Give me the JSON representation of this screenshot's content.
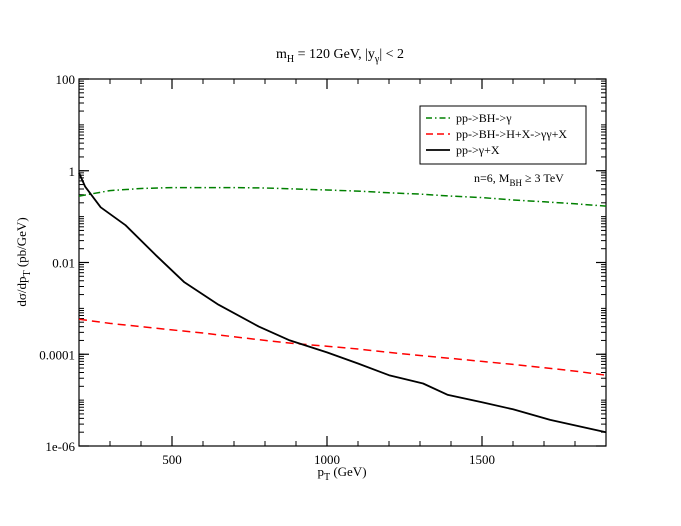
{
  "chart_data": {
    "type": "line",
    "title": "m_H = 120 GeV,  |y_γ| < 2",
    "title_parts": {
      "m": "m",
      "m_sub": "H",
      "mid": " = 120 GeV,  |y",
      "y_sub": "γ",
      "end": "| < 2"
    },
    "xlabel": "p_T (GeV)",
    "xlabel_parts": {
      "p": "p",
      "sub": "T",
      "rest": " (GeV)"
    },
    "ylabel": "dσ/dp_T (pb/GeV)",
    "ylabel_parts": {
      "main": "dσ/dp",
      "sub": "T",
      "rest": " (pb/GeV)"
    },
    "xlim": [
      200,
      1900
    ],
    "ylim_log10": [
      -6,
      2
    ],
    "yscale": "log",
    "x_ticks": [
      {
        "value": 500,
        "label": "500"
      },
      {
        "value": 1000,
        "label": "1000"
      },
      {
        "value": 1500,
        "label": "1500"
      }
    ],
    "y_ticks": [
      {
        "value": 100,
        "label": "100"
      },
      {
        "value": 1,
        "label": "1"
      },
      {
        "value": 0.01,
        "label": "0.01"
      },
      {
        "value": 0.0001,
        "label": "0.0001"
      },
      {
        "value": 1e-06,
        "label": "1e-06"
      }
    ],
    "legend": {
      "position": "top-right",
      "entries": [
        {
          "label": "pp->BH->γ",
          "color": "#008000",
          "dash": "dashdot"
        },
        {
          "label": "pp->BH->H+X->γγ+X",
          "color": "#ff0000",
          "dash": "dashed"
        },
        {
          "label": "pp->γ+X",
          "color": "#000000",
          "dash": "solid"
        }
      ]
    },
    "annotation": {
      "text": "n=6,  M_BH ≥ 3 TeV",
      "prefix": "n=6,  M",
      "sub": "BH",
      "suffix": " ≥ 3 TeV"
    },
    "series": [
      {
        "name": "pp->BH->γ",
        "color": "#008000",
        "dash": "dashdot",
        "x": [
          200,
          300,
          400,
          500,
          600,
          700,
          800,
          900,
          1000,
          1100,
          1200,
          1300,
          1400,
          1500,
          1600,
          1700,
          1800,
          1900
        ],
        "y": [
          0.28,
          0.37,
          0.41,
          0.43,
          0.43,
          0.43,
          0.42,
          0.4,
          0.38,
          0.36,
          0.33,
          0.31,
          0.28,
          0.26,
          0.23,
          0.21,
          0.19,
          0.17
        ]
      },
      {
        "name": "pp->BH->H+X->γγ+X",
        "color": "#ff0000",
        "dash": "dashed",
        "x": [
          200,
          300,
          400,
          500,
          600,
          700,
          800,
          900,
          1000,
          1100,
          1200,
          1300,
          1400,
          1500,
          1600,
          1700,
          1800,
          1900
        ],
        "y": [
          0.00058,
          0.00047,
          0.0004,
          0.00034,
          0.00029,
          0.00024,
          0.0002,
          0.00017,
          0.00015,
          0.00013,
          0.00011,
          9.4e-05,
          8.1e-05,
          7e-05,
          6e-05,
          5.1e-05,
          4.3e-05,
          3.5e-05
        ]
      },
      {
        "name": "pp->γ+X",
        "color": "#000000",
        "dash": "solid",
        "x": [
          200,
          220,
          270,
          350,
          450,
          540,
          650,
          780,
          880,
          1000,
          1100,
          1200,
          1310,
          1390,
          1500,
          1600,
          1720,
          1900
        ],
        "y": [
          0.9,
          0.45,
          0.16,
          0.065,
          0.014,
          0.0037,
          0.0012,
          0.0004,
          0.0002,
          0.00011,
          6.3e-05,
          3.5e-05,
          2.3e-05,
          1.3e-05,
          9e-06,
          6.3e-06,
          3.7e-06,
          2e-06
        ]
      }
    ]
  }
}
